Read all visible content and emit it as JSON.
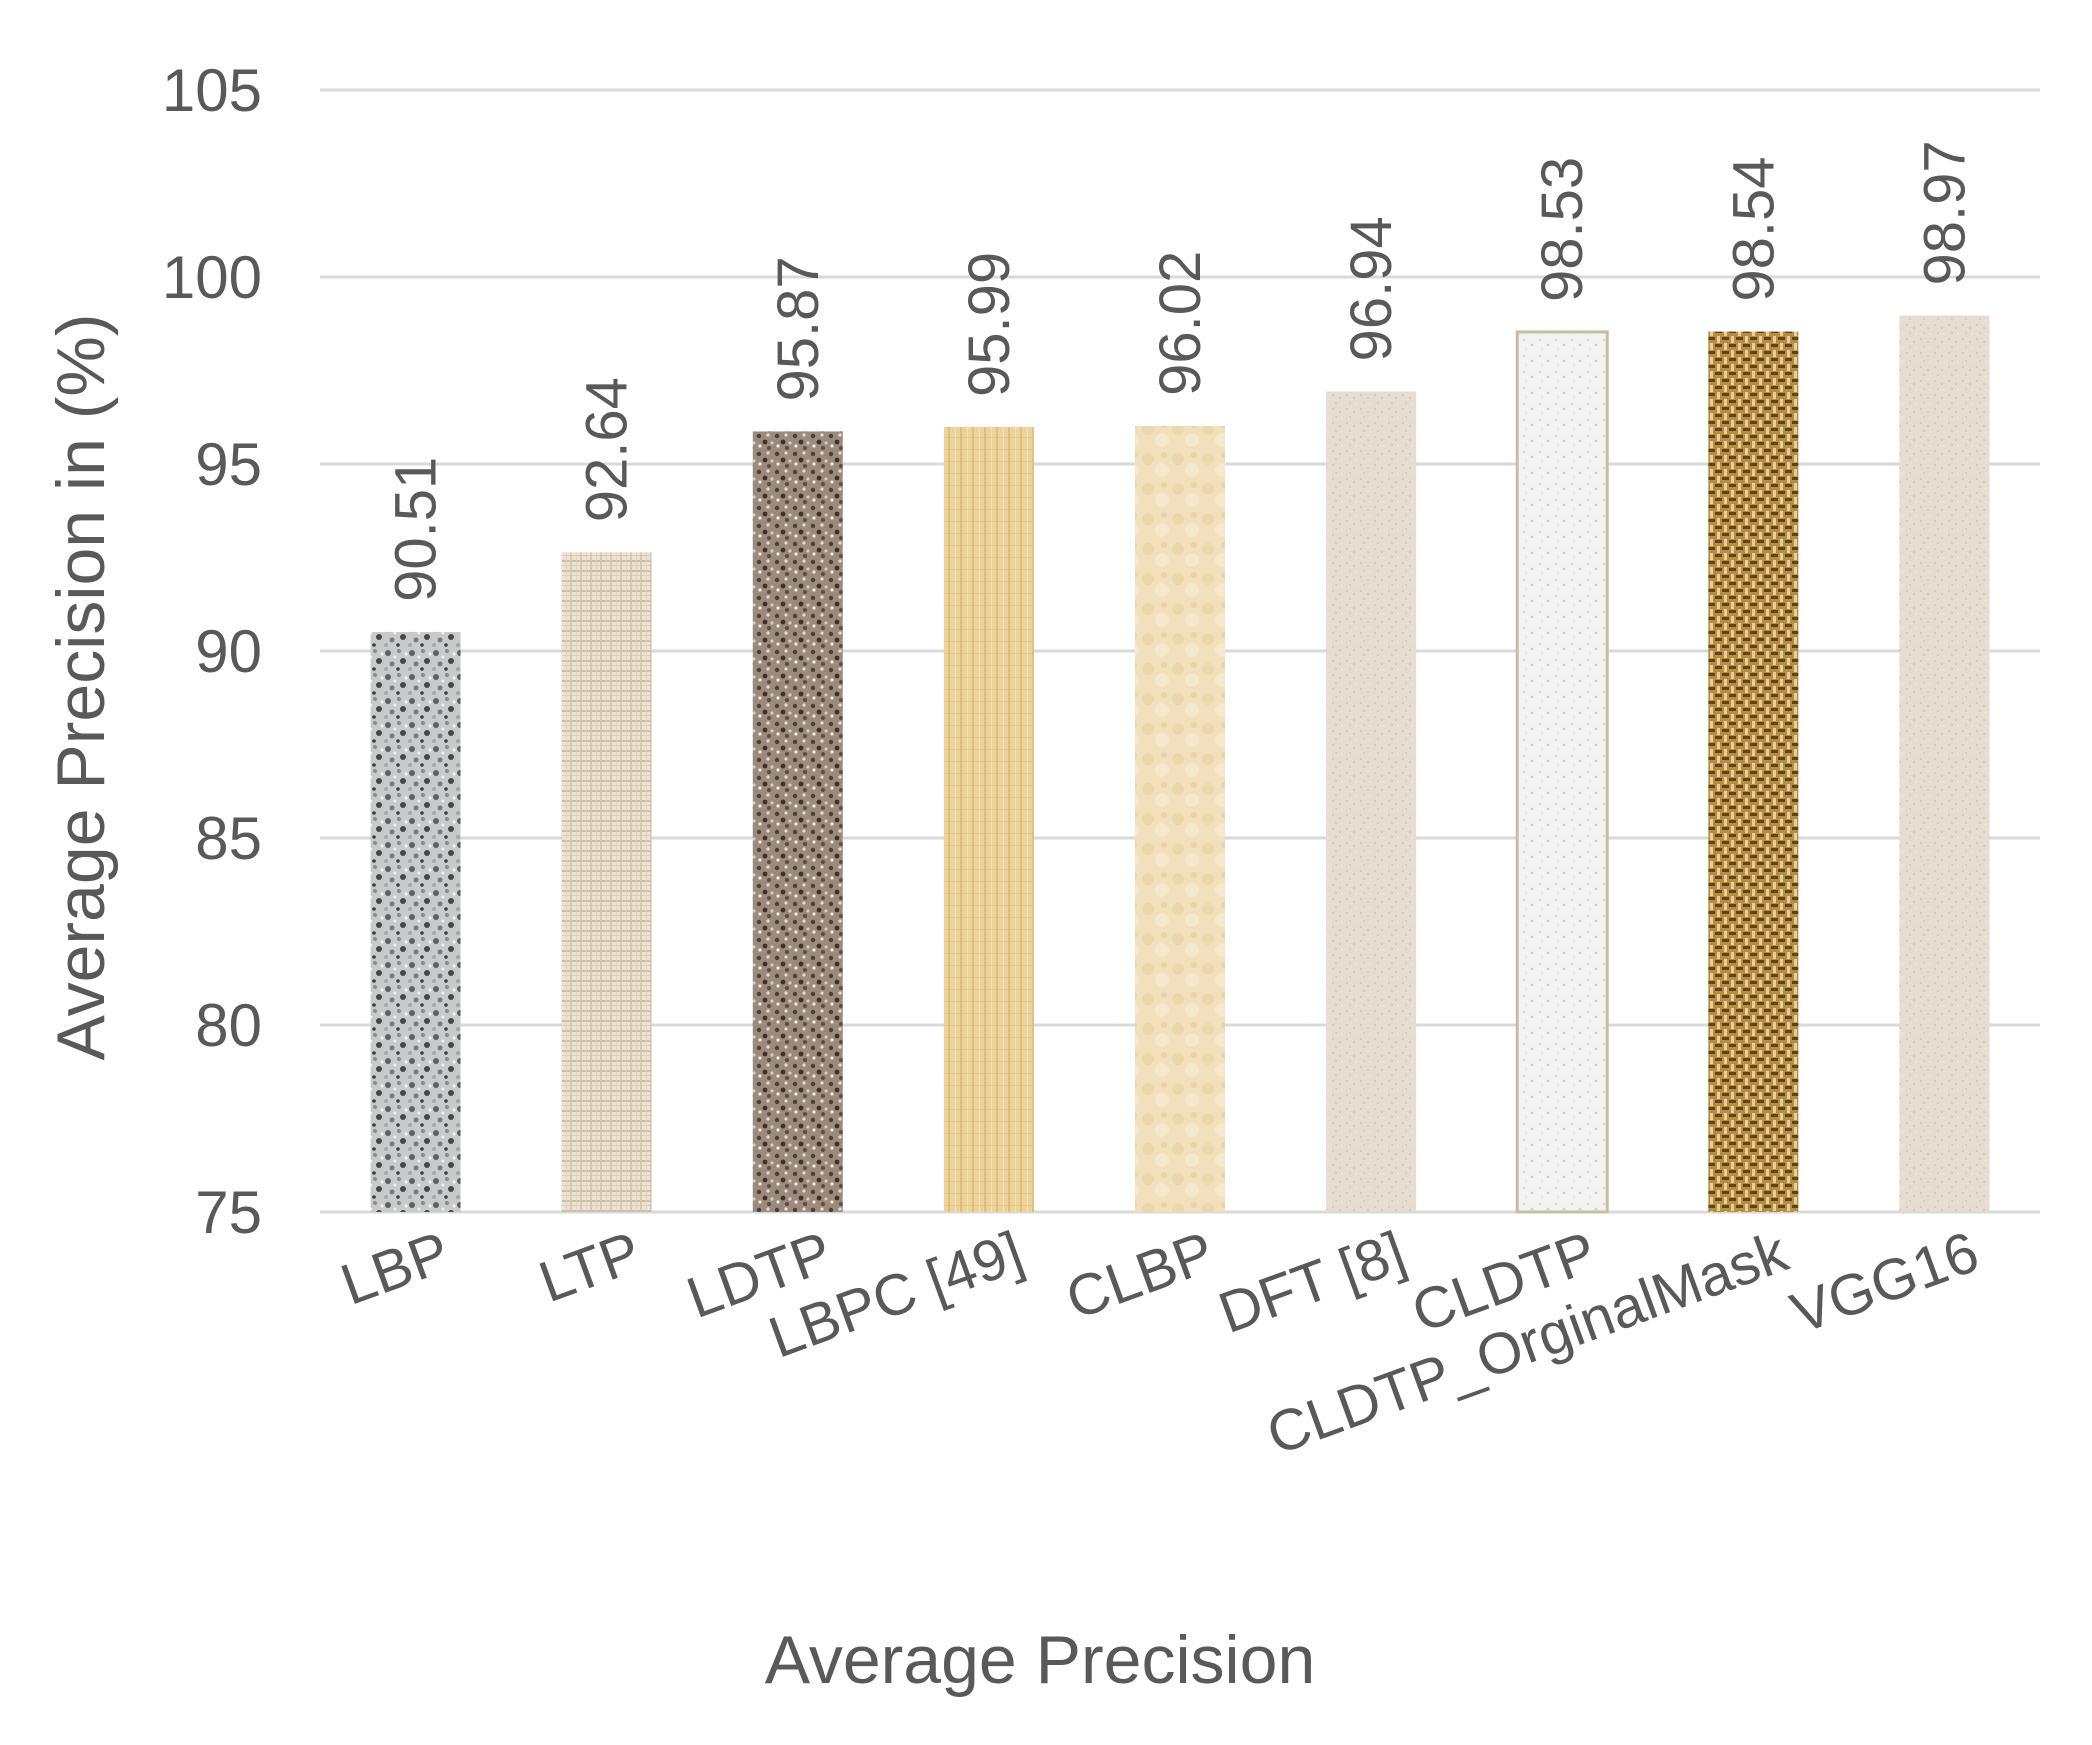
{
  "chart_data": {
    "type": "bar",
    "title": "",
    "xlabel": "Average Precision",
    "ylabel": "Average Precision in (%)",
    "ylim": [
      75,
      105
    ],
    "yticks": [
      75,
      80,
      85,
      90,
      95,
      100,
      105
    ],
    "grid": true,
    "categories": [
      "LBP",
      "LTP",
      "LDTP",
      "LBPC [49]",
      "CLBP",
      "DFT [8]",
      "CLDTP",
      "CLDTP_OrginalMask",
      "VGG16"
    ],
    "values": [
      90.51,
      92.64,
      95.87,
      95.99,
      96.02,
      96.94,
      98.53,
      98.54,
      98.97
    ],
    "data_labels": [
      "90.51",
      "92.64",
      "95.87",
      "95.99",
      "96.02",
      "96.94",
      "98.53",
      "98.54",
      "98.97"
    ],
    "bar_patterns": [
      "granite",
      "linen",
      "stone",
      "papyrus",
      "parchment",
      "sand",
      "marble",
      "burlap",
      "sand"
    ],
    "colors": {
      "grid": "#d9d9d9",
      "axis": "#d9d9d9",
      "text": "#595959"
    }
  }
}
